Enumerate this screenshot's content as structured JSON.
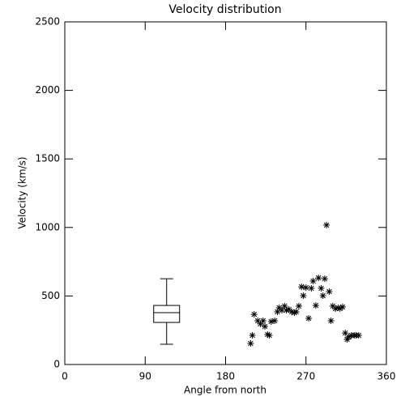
{
  "chart_data": {
    "type": "scatter",
    "title": "Velocity distribution",
    "x_label": "Angle from north",
    "y_label": "Velocity (km/s)",
    "xlim": [
      0,
      360
    ],
    "xticks": [
      0,
      90,
      180,
      270,
      360
    ],
    "ylim": [
      0,
      2500
    ],
    "yticks": [
      0,
      500,
      1000,
      1500,
      2000,
      2500
    ],
    "color": "#000000",
    "marker": "asterisk",
    "x": [
      208,
      210,
      212,
      216,
      219,
      222,
      224,
      227,
      229,
      231,
      235,
      238,
      240,
      243,
      246,
      248,
      251,
      254,
      257,
      259,
      262,
      265,
      267,
      270,
      273,
      276,
      278,
      281,
      284,
      287,
      289,
      291,
      293,
      296,
      298,
      300,
      303,
      306,
      308,
      311,
      314,
      316,
      318,
      321,
      324,
      326,
      329
    ],
    "values": [
      154,
      213,
      366,
      319,
      296,
      319,
      278,
      219,
      213,
      313,
      319,
      384,
      414,
      396,
      426,
      396,
      402,
      384,
      378,
      384,
      426,
      567,
      502,
      561,
      337,
      556,
      609,
      431,
      632,
      556,
      502,
      626,
      1017,
      532,
      319,
      426,
      408,
      414,
      408,
      420,
      230,
      183,
      201,
      213,
      213,
      213,
      213
    ],
    "box": {
      "x": 114,
      "min": 148,
      "q1": 307,
      "median": 378,
      "q3": 431,
      "max": 626
    }
  }
}
